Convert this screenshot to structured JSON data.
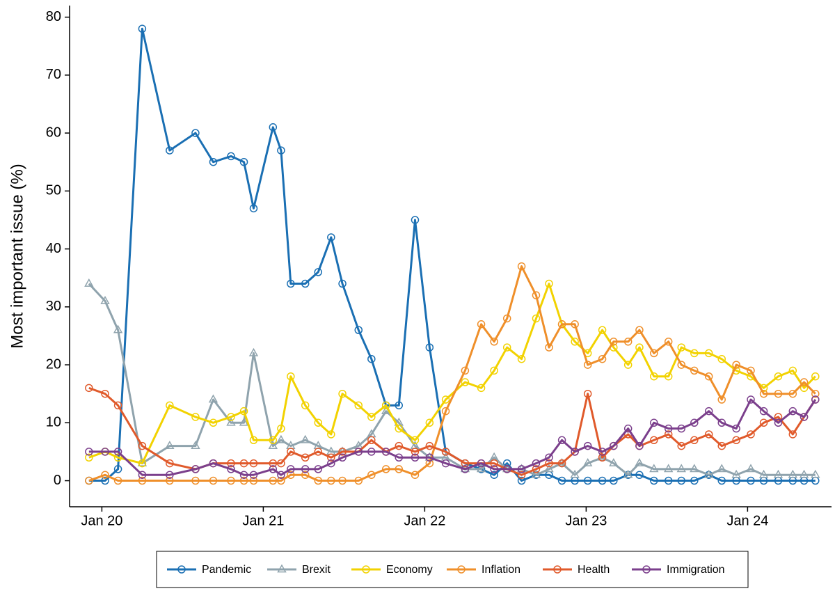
{
  "chart_data": {
    "type": "line",
    "ylabel": "Most important issue (%)",
    "x": [
      2019.92,
      2020.02,
      2020.1,
      2020.25,
      2020.42,
      2020.58,
      2020.69,
      2020.8,
      2020.88,
      2020.94,
      2021.06,
      2021.11,
      2021.17,
      2021.26,
      2021.34,
      2021.42,
      2021.49,
      2021.59,
      2021.67,
      2021.76,
      2021.84,
      2021.94,
      2022.03,
      2022.13,
      2022.25,
      2022.35,
      2022.43,
      2022.51,
      2022.6,
      2022.69,
      2022.77,
      2022.85,
      2022.93,
      2023.01,
      2023.1,
      2023.17,
      2023.26,
      2023.33,
      2023.42,
      2023.51,
      2023.59,
      2023.67,
      2023.76,
      2023.84,
      2023.93,
      2024.02,
      2024.1,
      2024.19,
      2024.28,
      2024.35,
      2024.42
    ],
    "series": [
      {
        "name": "Pandemic",
        "color": "#1a6fb3",
        "marker": "circle",
        "values": [
          0,
          0,
          2,
          78,
          57,
          60,
          55,
          56,
          55,
          47,
          61,
          57,
          34,
          34,
          36,
          42,
          34,
          26,
          21,
          13,
          13,
          45,
          23,
          5,
          3,
          2,
          1,
          3,
          0,
          1,
          1,
          0,
          0,
          0,
          0,
          0,
          1,
          1,
          0,
          0,
          0,
          0,
          1,
          0,
          0,
          0,
          0,
          0,
          0,
          0,
          0
        ]
      },
      {
        "name": "Brexit",
        "color": "#8fa3ad",
        "marker": "triangle",
        "values": [
          34,
          31,
          26,
          3,
          6,
          6,
          14,
          10,
          10,
          22,
          6,
          7,
          6,
          7,
          6,
          5,
          5,
          6,
          8,
          12,
          10,
          6,
          4,
          4,
          2,
          2,
          4,
          2,
          2,
          1,
          2,
          3,
          1,
          3,
          4,
          3,
          1,
          3,
          2,
          2,
          2,
          2,
          1,
          2,
          1,
          2,
          1,
          1,
          1,
          1,
          1
        ]
      },
      {
        "name": "Economy",
        "color": "#f2d200",
        "marker": "circle",
        "values": [
          4,
          5,
          4,
          3,
          13,
          11,
          10,
          11,
          12,
          7,
          7,
          9,
          18,
          13,
          10,
          8,
          15,
          13,
          11,
          13,
          9,
          7,
          10,
          14,
          17,
          16,
          19,
          23,
          21,
          28,
          34,
          27,
          24,
          22,
          26,
          23,
          20,
          23,
          18,
          18,
          23,
          22,
          22,
          21,
          19,
          18,
          16,
          18,
          19,
          16,
          18
        ]
      },
      {
        "name": "Inflation",
        "color": "#ef8f2a",
        "marker": "circle",
        "values": [
          0,
          1,
          0,
          0,
          0,
          0,
          0,
          0,
          0,
          0,
          0,
          0,
          1,
          1,
          0,
          0,
          0,
          0,
          1,
          2,
          2,
          1,
          3,
          12,
          19,
          27,
          24,
          28,
          37,
          32,
          23,
          27,
          27,
          20,
          21,
          24,
          24,
          26,
          22,
          24,
          20,
          19,
          18,
          14,
          20,
          19,
          15,
          15,
          15,
          17,
          15
        ]
      },
      {
        "name": "Health",
        "color": "#e05a2b",
        "marker": "circle",
        "values": [
          16,
          15,
          13,
          6,
          3,
          2,
          3,
          3,
          3,
          3,
          3,
          3,
          5,
          4,
          5,
          4,
          5,
          5,
          7,
          5,
          6,
          5,
          6,
          5,
          3,
          3,
          3,
          2,
          1,
          2,
          3,
          3,
          5,
          15,
          4,
          6,
          8,
          6,
          7,
          8,
          6,
          7,
          8,
          6,
          7,
          8,
          10,
          11,
          8,
          11,
          14
        ]
      },
      {
        "name": "Immigration",
        "color": "#7b3f8c",
        "marker": "circle",
        "values": [
          5,
          5,
          5,
          1,
          1,
          2,
          3,
          2,
          1,
          1,
          2,
          1,
          2,
          2,
          2,
          3,
          4,
          5,
          5,
          5,
          4,
          4,
          4,
          3,
          2,
          3,
          2,
          2,
          2,
          3,
          4,
          7,
          5,
          6,
          5,
          6,
          9,
          6,
          10,
          9,
          9,
          10,
          12,
          10,
          9,
          14,
          12,
          10,
          12,
          11,
          14
        ]
      }
    ],
    "xlim": [
      2019.8,
      2024.52
    ],
    "xticks": [
      {
        "value": 2020,
        "label": "Jan 20"
      },
      {
        "value": 2021,
        "label": "Jan 21"
      },
      {
        "value": 2022,
        "label": "Jan 22"
      },
      {
        "value": 2023,
        "label": "Jan 23"
      },
      {
        "value": 2024,
        "label": "Jan 24"
      }
    ],
    "ylim": [
      -4.5,
      82
    ],
    "yticks": [
      0,
      10,
      20,
      30,
      40,
      50,
      60,
      70,
      80
    ],
    "grid": false,
    "legend": "bottom"
  }
}
